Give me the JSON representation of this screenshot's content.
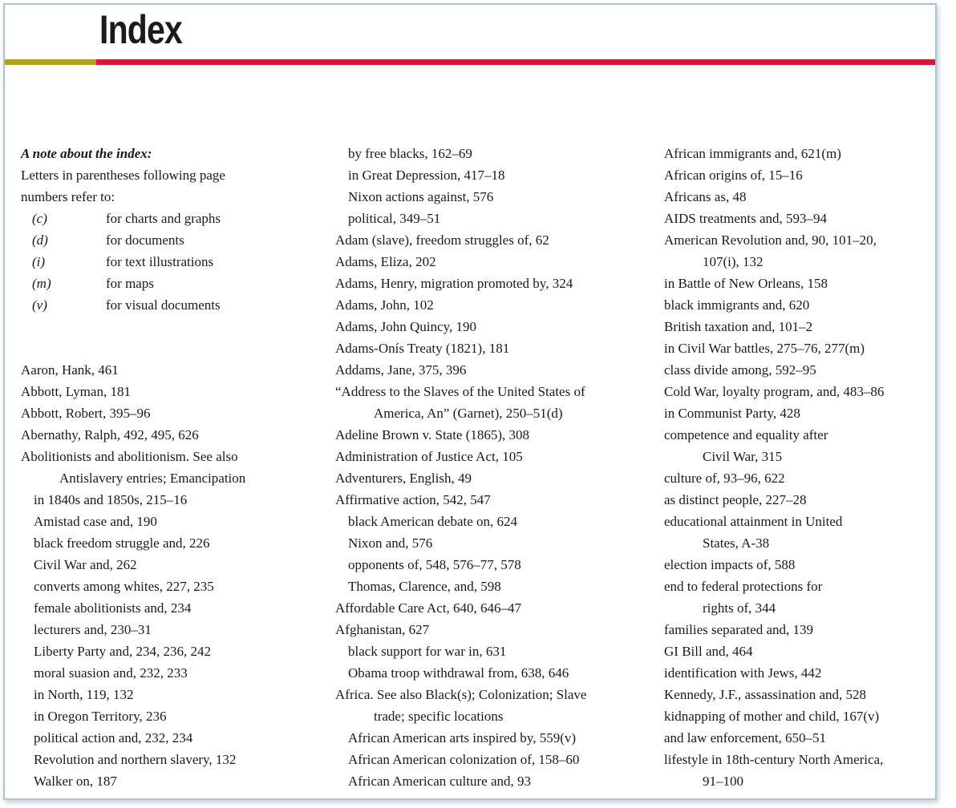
{
  "title": "Index",
  "colors": {
    "rule_left": "#b0a21c",
    "rule_right": "#cf1a3a",
    "border": "#a9c4dc"
  },
  "note": {
    "heading": "A note about the index:",
    "line1": "Letters in parentheses following page",
    "line2": "numbers refer to:",
    "legend": [
      {
        "key": "(c)",
        "desc": "for charts and graphs"
      },
      {
        "key": "(d)",
        "desc": "for documents"
      },
      {
        "key": "(i)",
        "desc": "for text illustrations"
      },
      {
        "key": "(m)",
        "desc": "for maps"
      },
      {
        "key": "(v)",
        "desc": "for visual documents"
      }
    ]
  },
  "col1": [
    {
      "text": "Aaron, Hank, 461",
      "indent": 0
    },
    {
      "text": "Abbott, Lyman, 181",
      "indent": 0
    },
    {
      "text": "Abbott, Robert, 395–96",
      "indent": 0
    },
    {
      "text": "Abernathy, Ralph, 492, 495, 626",
      "indent": 0
    },
    {
      "text": "Abolitionists and abolitionism. See also",
      "indent": 0
    },
    {
      "text": "Antislavery entries; Emancipation",
      "indent": 2
    },
    {
      "text": "in 1840s and 1850s, 215–16",
      "indent": 1
    },
    {
      "text": "Amistad case and, 190",
      "indent": 1
    },
    {
      "text": "black freedom struggle and, 226",
      "indent": 1
    },
    {
      "text": "Civil War and, 262",
      "indent": 1
    },
    {
      "text": "converts among whites, 227, 235",
      "indent": 1
    },
    {
      "text": "female abolitionists and, 234",
      "indent": 1
    },
    {
      "text": "lecturers and, 230–31",
      "indent": 1
    },
    {
      "text": "Liberty Party and, 234, 236, 242",
      "indent": 1
    },
    {
      "text": "moral suasion and, 232, 233",
      "indent": 1
    },
    {
      "text": "in North, 119, 132",
      "indent": 1
    },
    {
      "text": "in Oregon Territory, 236",
      "indent": 1
    },
    {
      "text": "political action and, 232, 234",
      "indent": 1
    },
    {
      "text": "Revolution and northern slavery, 132",
      "indent": 1
    },
    {
      "text": "Walker on, 187",
      "indent": 1
    }
  ],
  "col2": [
    {
      "text": "by free blacks, 162–69",
      "indent": 1
    },
    {
      "text": "in Great Depression, 417–18",
      "indent": 1
    },
    {
      "text": "Nixon actions against, 576",
      "indent": 1
    },
    {
      "text": "political, 349–51",
      "indent": 1
    },
    {
      "text": "Adam (slave), freedom struggles of, 62",
      "indent": 0
    },
    {
      "text": "Adams, Eliza, 202",
      "indent": 0
    },
    {
      "text": "Adams, Henry, migration promoted by, 324",
      "indent": 0
    },
    {
      "text": "Adams, John, 102",
      "indent": 0
    },
    {
      "text": "Adams, John Quincy, 190",
      "indent": 0
    },
    {
      "text": "Adams-Onís Treaty (1821), 181",
      "indent": 0
    },
    {
      "text": "Addams, Jane, 375, 396",
      "indent": 0
    },
    {
      "text": "“Address to the Slaves of the United States of",
      "indent": 0
    },
    {
      "text": "America, An” (Garnet), 250–51(d)",
      "indent": 2
    },
    {
      "text": "Adeline Brown v. State (1865), 308",
      "indent": 0
    },
    {
      "text": "Administration of Justice Act, 105",
      "indent": 0
    },
    {
      "text": "Adventurers, English, 49",
      "indent": 0
    },
    {
      "text": "Affirmative action, 542, 547",
      "indent": 0
    },
    {
      "text": "black American debate on, 624",
      "indent": 1
    },
    {
      "text": "Nixon and, 576",
      "indent": 1
    },
    {
      "text": "opponents of, 548, 576–77, 578",
      "indent": 1
    },
    {
      "text": "Thomas, Clarence, and, 598",
      "indent": 1
    },
    {
      "text": "Affordable Care Act, 640, 646–47",
      "indent": 0
    },
    {
      "text": "Afghanistan, 627",
      "indent": 0
    },
    {
      "text": "black support for war in, 631",
      "indent": 1
    },
    {
      "text": "Obama troop withdrawal from, 638, 646",
      "indent": 1
    },
    {
      "text": "Africa. See also Black(s); Colonization; Slave",
      "indent": 0
    },
    {
      "text": "trade; specific locations",
      "indent": 2
    },
    {
      "text": "African American arts inspired by, 559(v)",
      "indent": 1
    },
    {
      "text": "African American colonization of, 158–60",
      "indent": 1
    },
    {
      "text": "African American culture and, 93",
      "indent": 1
    }
  ],
  "col3": [
    {
      "text": "African immigrants and, 621(m)",
      "indent": 0
    },
    {
      "text": "African origins of, 15–16",
      "indent": 0
    },
    {
      "text": "Africans as, 48",
      "indent": 0
    },
    {
      "text": "AIDS treatments and, 593–94",
      "indent": 0
    },
    {
      "text": "American Revolution and, 90, 101–20,",
      "indent": 0
    },
    {
      "text": "107(i), 132",
      "indent": 2
    },
    {
      "text": "in Battle of New Orleans, 158",
      "indent": 0
    },
    {
      "text": "black immigrants and, 620",
      "indent": 0
    },
    {
      "text": "British taxation and, 101–2",
      "indent": 0
    },
    {
      "text": "in Civil War battles, 275–76, 277(m)",
      "indent": 0
    },
    {
      "text": "class divide among, 592–95",
      "indent": 0
    },
    {
      "text": "Cold War, loyalty program, and, 483–86",
      "indent": 0
    },
    {
      "text": "in Communist Party, 428",
      "indent": 0
    },
    {
      "text": "competence and equality after",
      "indent": 0
    },
    {
      "text": "Civil War, 315",
      "indent": 2
    },
    {
      "text": "culture of, 93–96, 622",
      "indent": 0
    },
    {
      "text": "as distinct people, 227–28",
      "indent": 0
    },
    {
      "text": "educational attainment in United",
      "indent": 0
    },
    {
      "text": "States, A-38",
      "indent": 2
    },
    {
      "text": "election impacts of, 588",
      "indent": 0
    },
    {
      "text": "end to federal protections for",
      "indent": 0
    },
    {
      "text": "rights of, 344",
      "indent": 2
    },
    {
      "text": "families separated and, 139",
      "indent": 0
    },
    {
      "text": "GI Bill and, 464",
      "indent": 0
    },
    {
      "text": "identification with Jews, 442",
      "indent": 0
    },
    {
      "text": "Kennedy, J.F., assassination and, 528",
      "indent": 0
    },
    {
      "text": "kidnapping of mother and child, 167(v)",
      "indent": 0
    },
    {
      "text": "and law enforcement, 650–51",
      "indent": 0
    },
    {
      "text": "lifestyle in 18th-century North America,",
      "indent": 0
    },
    {
      "text": "91–100",
      "indent": 2
    }
  ]
}
